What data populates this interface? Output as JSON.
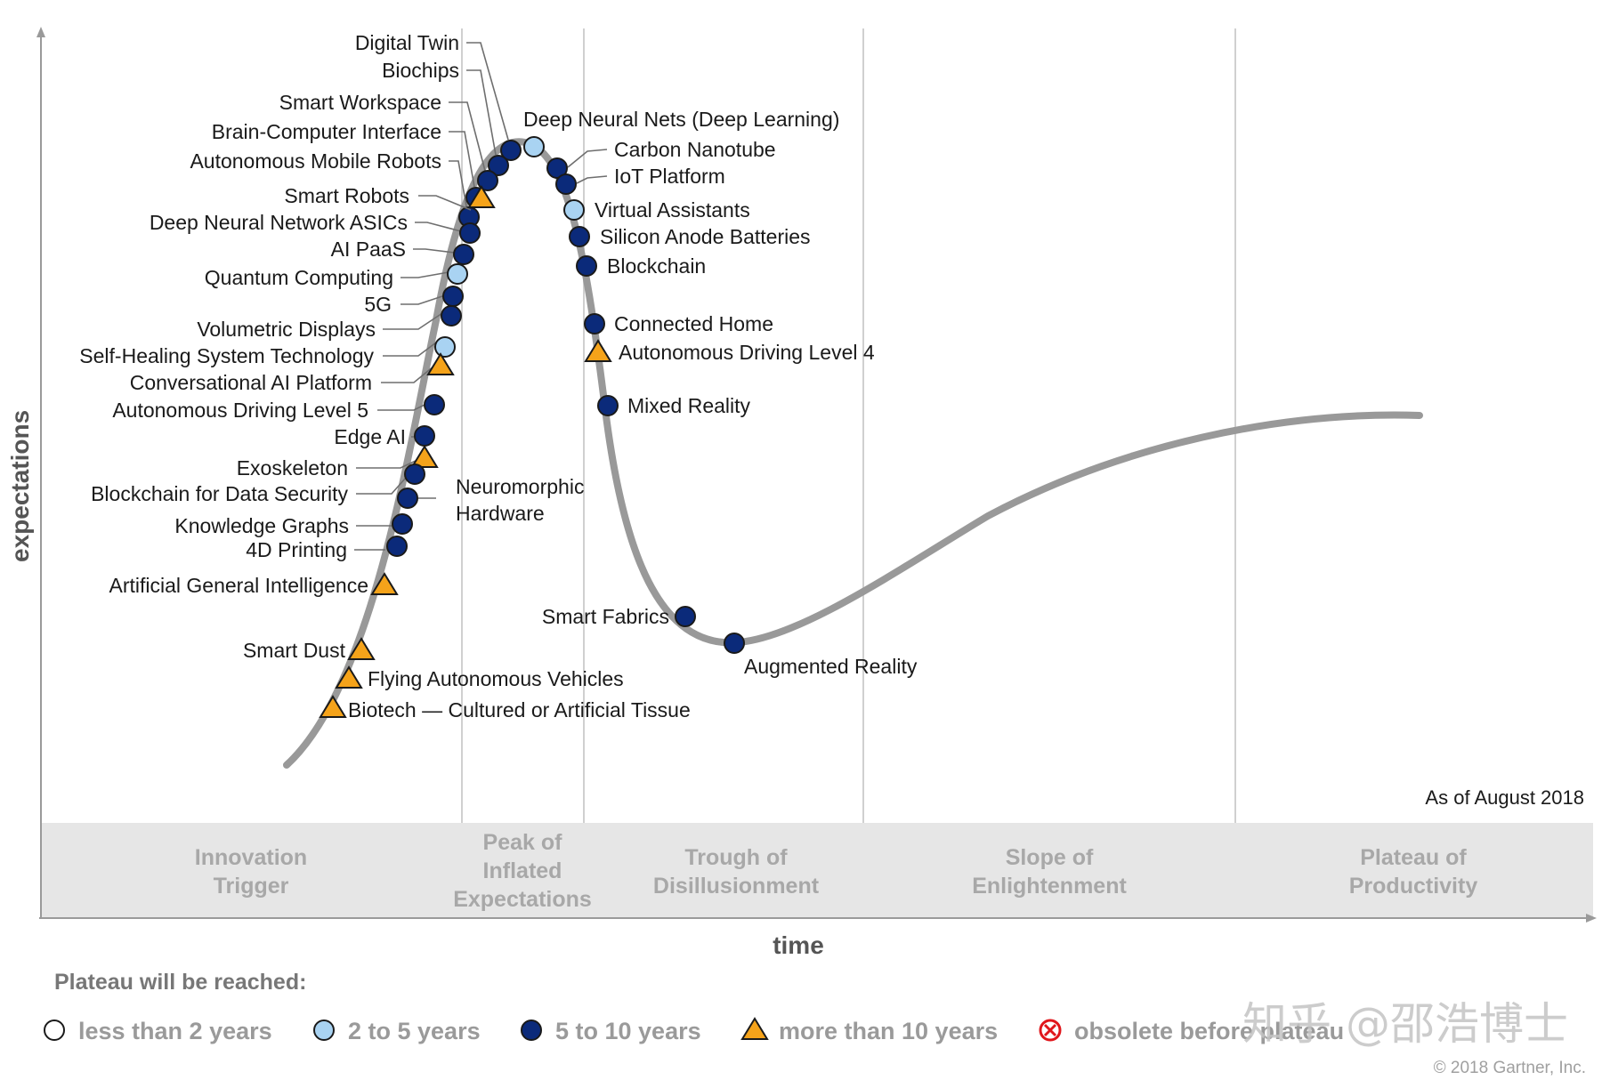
{
  "chart": {
    "y_axis_label": "expectations",
    "x_axis_label": "time",
    "as_of": "As of August 2018",
    "copyright": "© 2018 Gartner, Inc.",
    "watermark": "知乎 @邵浩博士",
    "phases": [
      {
        "lines": [
          "Innovation",
          "Trigger"
        ]
      },
      {
        "lines": [
          "Peak of",
          "Inflated",
          "Expectations"
        ]
      },
      {
        "lines": [
          "Trough of",
          "Disillusionment"
        ]
      },
      {
        "lines": [
          "Slope of",
          "Enlightenment"
        ]
      },
      {
        "lines": [
          "Plateau of",
          "Productivity"
        ]
      }
    ],
    "legend_title": "Plateau will be reached:",
    "legend": [
      {
        "key": "lt2",
        "label": "less than 2 years",
        "marker": "circle-white"
      },
      {
        "key": "2to5",
        "label": "2 to 5 years",
        "marker": "circle-lightblue"
      },
      {
        "key": "5to10",
        "label": "5 to 10 years",
        "marker": "circle-navy"
      },
      {
        "key": "gt10",
        "label": "more than 10 years",
        "marker": "triangle-orange"
      },
      {
        "key": "obsolete",
        "label": "obsolete before plateau",
        "marker": "circle-x-red"
      }
    ],
    "colors": {
      "curve": "#999999",
      "navy": "#0b2a7a",
      "lightblue": "#a9d3f2",
      "orange": "#f5a31a",
      "obsolete": "#e0161b",
      "phase_band": "#e6e6e6",
      "phase_text": "#a8a8a8"
    }
  },
  "technologies": [
    {
      "name": "Digital Twin",
      "category": "5to10"
    },
    {
      "name": "Biochips",
      "category": "5to10"
    },
    {
      "name": "Smart Workspace",
      "category": "5to10"
    },
    {
      "name": "Brain-Computer Interface",
      "category": "5to10"
    },
    {
      "name": "Autonomous Mobile Robots",
      "category": "5to10"
    },
    {
      "name": "Smart Robots",
      "category": "gt10"
    },
    {
      "name": "Deep Neural Network ASICs",
      "category": "5to10"
    },
    {
      "name": "AI PaaS",
      "category": "5to10"
    },
    {
      "name": "Quantum Computing",
      "category": "2to5"
    },
    {
      "name": "5G",
      "category": "5to10"
    },
    {
      "name": "Volumetric Displays",
      "category": "5to10"
    },
    {
      "name": "Self-Healing System Technology",
      "category": "2to5"
    },
    {
      "name": "Conversational AI Platform",
      "category": "gt10"
    },
    {
      "name": "Autonomous Driving Level 5",
      "category": "5to10"
    },
    {
      "name": "Edge AI",
      "category": "5to10"
    },
    {
      "name": "Exoskeleton",
      "category": "gt10"
    },
    {
      "name": "Blockchain for Data Security",
      "category": "5to10"
    },
    {
      "name": "Neuromorphic Hardware",
      "category": "5to10"
    },
    {
      "name": "Knowledge Graphs",
      "category": "5to10"
    },
    {
      "name": "4D Printing",
      "category": "5to10"
    },
    {
      "name": "Artificial General Intelligence",
      "category": "gt10"
    },
    {
      "name": "Smart Dust",
      "category": "gt10"
    },
    {
      "name": "Flying Autonomous Vehicles",
      "category": "gt10"
    },
    {
      "name": "Biotech — Cultured or Artificial Tissue",
      "category": "gt10"
    },
    {
      "name": "Deep Neural Nets (Deep Learning)",
      "category": "2to5"
    },
    {
      "name": "Carbon Nanotube",
      "category": "5to10"
    },
    {
      "name": "IoT Platform",
      "category": "5to10"
    },
    {
      "name": "Virtual Assistants",
      "category": "2to5"
    },
    {
      "name": "Silicon Anode Batteries",
      "category": "5to10"
    },
    {
      "name": "Blockchain",
      "category": "5to10"
    },
    {
      "name": "Connected Home",
      "category": "5to10"
    },
    {
      "name": "Autonomous Driving Level 4",
      "category": "gt10"
    },
    {
      "name": "Mixed Reality",
      "category": "5to10"
    },
    {
      "name": "Smart Fabrics",
      "category": "5to10"
    },
    {
      "name": "Augmented Reality",
      "category": "5to10"
    }
  ]
}
